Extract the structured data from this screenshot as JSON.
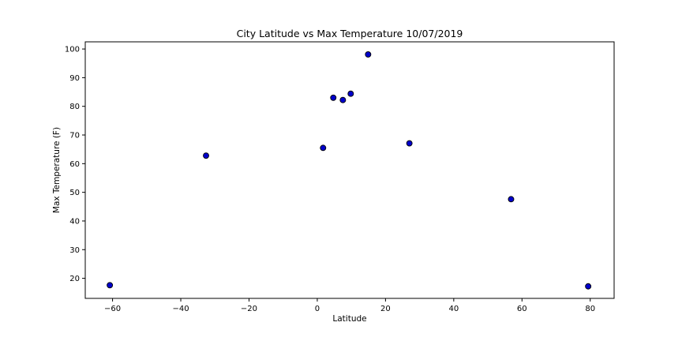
{
  "chart_data": {
    "type": "scatter",
    "title": "City Latitude vs Max Temperature 10/07/2019",
    "xlabel": "Latitude",
    "ylabel": "Max Temperature (F)",
    "xlim": [
      -68,
      87
    ],
    "ylim": [
      13,
      102.5
    ],
    "xticks": [
      -60,
      -40,
      -20,
      0,
      20,
      40,
      60,
      80
    ],
    "yticks": [
      20,
      30,
      40,
      50,
      60,
      70,
      80,
      90,
      100
    ],
    "xtick_labels": [
      "−60",
      "−40",
      "−20",
      "0",
      "20",
      "40",
      "60",
      "80"
    ],
    "ytick_labels": [
      "20",
      "30",
      "40",
      "50",
      "60",
      "70",
      "80",
      "90",
      "100"
    ],
    "grid": false,
    "marker_color": "#0000cc",
    "marker_edge_color": "#000000",
    "x": [
      -60.8,
      -32.6,
      1.7,
      4.7,
      7.5,
      9.8,
      14.9,
      27.0,
      56.8,
      79.4
    ],
    "y": [
      17.6,
      62.8,
      65.5,
      83.0,
      82.2,
      84.4,
      98.1,
      67.1,
      47.6,
      17.2
    ]
  }
}
